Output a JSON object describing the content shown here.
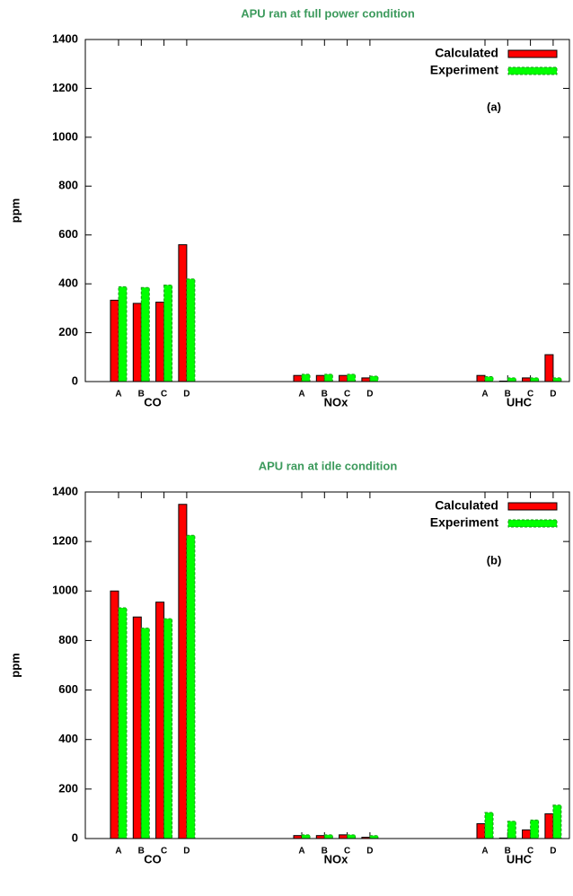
{
  "chart_data": [
    {
      "type": "bar",
      "title": "APU ran at full power condition",
      "ylabel": "ppm",
      "annotation": "(a)",
      "categories": [
        "A",
        "B",
        "C",
        "D",
        "A",
        "B",
        "C",
        "D",
        "A",
        "B",
        "C",
        "D"
      ],
      "groups": [
        "CO",
        "NOx",
        "UHC"
      ],
      "series": [
        {
          "name": "Calculated",
          "color": "#ff0000",
          "values": [
            333,
            320,
            325,
            560,
            25,
            25,
            25,
            15,
            25,
            2,
            15,
            110
          ]
        },
        {
          "name": "Experiment",
          "color": "#00ff00",
          "values": [
            388,
            385,
            395,
            420,
            30,
            30,
            30,
            22,
            20,
            15,
            15,
            15
          ]
        }
      ],
      "ylim": [
        0,
        1400
      ],
      "yticks": [
        0,
        200,
        400,
        600,
        800,
        1000,
        1200,
        1400
      ]
    },
    {
      "type": "bar",
      "title": "APU ran at idle condition",
      "ylabel": "ppm",
      "annotation": "(b)",
      "categories": [
        "A",
        "B",
        "C",
        "D",
        "A",
        "B",
        "C",
        "D",
        "A",
        "B",
        "C",
        "D"
      ],
      "groups": [
        "CO",
        "NOx",
        "UHC"
      ],
      "series": [
        {
          "name": "Calculated",
          "color": "#ff0000",
          "values": [
            1000,
            895,
            955,
            1350,
            12,
            12,
            15,
            5,
            60,
            2,
            35,
            100
          ]
        },
        {
          "name": "Experiment",
          "color": "#00ff00",
          "values": [
            932,
            850,
            888,
            1225,
            15,
            15,
            15,
            12,
            105,
            70,
            75,
            135
          ]
        }
      ],
      "ylim": [
        0,
        1400
      ],
      "yticks": [
        0,
        200,
        400,
        600,
        800,
        1000,
        1200,
        1400
      ]
    }
  ]
}
